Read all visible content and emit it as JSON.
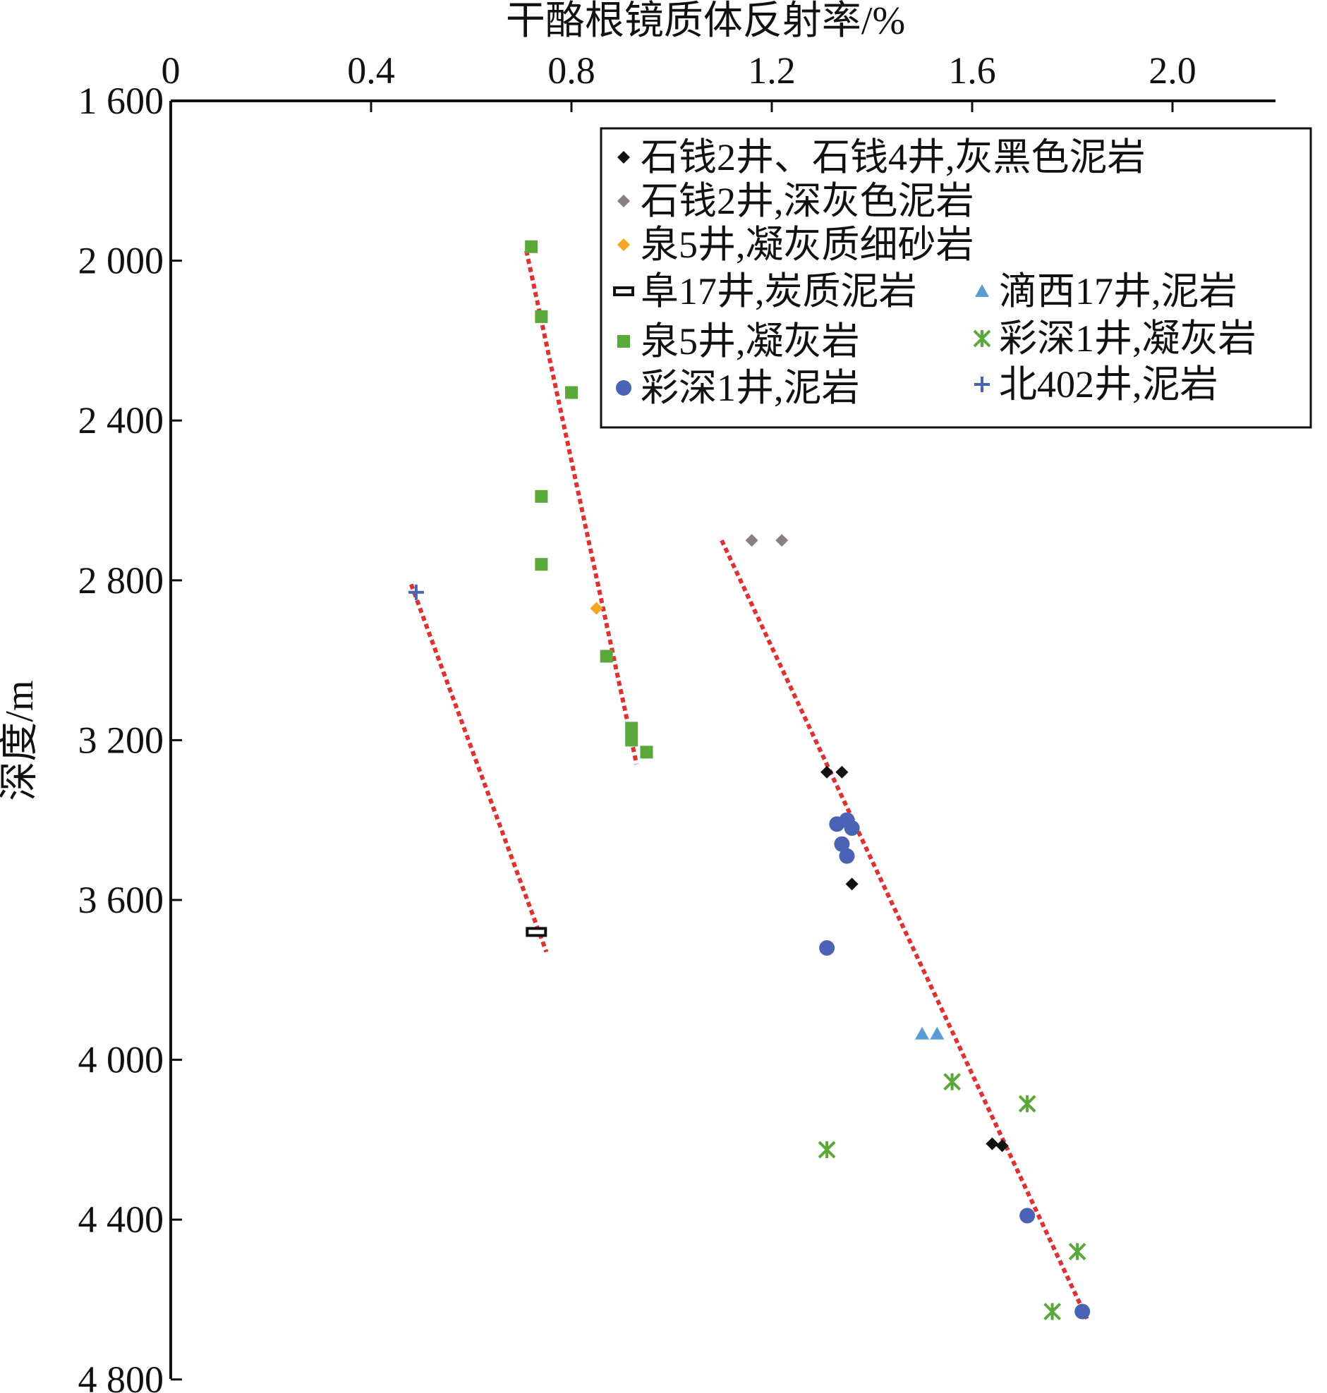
{
  "chart_data": {
    "type": "scatter",
    "title": "",
    "xlabel": "干酪根镜质体反射率/%",
    "ylabel": "深度/m",
    "x_axis_position": "top",
    "y_axis_inverted": true,
    "xlim": [
      0,
      2.2
    ],
    "ylim": [
      1600,
      4800
    ],
    "x_ticks": [
      0,
      0.4,
      0.8,
      1.2,
      1.6,
      2.0
    ],
    "x_tick_labels": [
      "0",
      "0.4",
      "0.8",
      "1.2",
      "1.6",
      "2.0"
    ],
    "y_ticks": [
      1600,
      2000,
      2400,
      2800,
      3200,
      3600,
      4000,
      4400,
      4800
    ],
    "y_tick_labels": [
      "1 600",
      "2 000",
      "2 400",
      "2 800",
      "3 200",
      "3 600",
      "4 000",
      "4 400",
      "4 800"
    ],
    "grid": false,
    "legend_position": "top-right",
    "series": [
      {
        "name": "石钱2井、石钱4井,灰黑色泥岩",
        "marker": "diamond",
        "color": "#111111",
        "points": [
          [
            1.31,
            3280
          ],
          [
            1.34,
            3280
          ],
          [
            1.36,
            3560
          ],
          [
            1.64,
            4210
          ],
          [
            1.66,
            4215
          ]
        ]
      },
      {
        "name": "石钱2井,深灰色泥岩",
        "marker": "diamond",
        "color": "#8a7f7f",
        "points": [
          [
            1.16,
            2700
          ],
          [
            1.22,
            2700
          ]
        ]
      },
      {
        "name": "泉5井,凝灰质细砂岩",
        "marker": "diamond",
        "color": "#f5a623",
        "points": [
          [
            0.85,
            2870
          ]
        ]
      },
      {
        "name": "阜17井,炭质泥岩",
        "marker": "bar",
        "color": "#111111",
        "points": [
          [
            0.73,
            3680
          ]
        ]
      },
      {
        "name": "泉5井,凝灰岩",
        "marker": "square",
        "color": "#5aa83a",
        "points": [
          [
            0.72,
            1965
          ],
          [
            0.74,
            2140
          ],
          [
            0.8,
            2330
          ],
          [
            0.74,
            2590
          ],
          [
            0.74,
            2760
          ],
          [
            0.87,
            2990
          ],
          [
            0.92,
            3170
          ],
          [
            0.92,
            3200
          ],
          [
            0.95,
            3230
          ]
        ]
      },
      {
        "name": "彩深1井,泥岩",
        "marker": "circle",
        "color": "#4a63b5",
        "points": [
          [
            1.33,
            3410
          ],
          [
            1.35,
            3400
          ],
          [
            1.36,
            3420
          ],
          [
            1.34,
            3460
          ],
          [
            1.35,
            3490
          ],
          [
            1.31,
            3720
          ],
          [
            1.71,
            4390
          ],
          [
            1.82,
            4630
          ]
        ]
      },
      {
        "name": "滴西17井,泥岩",
        "marker": "triangle",
        "color": "#5b9bd5",
        "points": [
          [
            1.5,
            3935
          ],
          [
            1.53,
            3935
          ]
        ]
      },
      {
        "name": "彩深1井,凝灰岩",
        "marker": "asterisk",
        "color": "#5aa83a",
        "points": [
          [
            1.31,
            4225
          ],
          [
            1.56,
            4055
          ],
          [
            1.71,
            4110
          ],
          [
            1.81,
            4480
          ],
          [
            1.76,
            4630
          ]
        ]
      },
      {
        "name": "北402井,泥岩",
        "marker": "plus",
        "color": "#4a63b5",
        "points": [
          [
            0.49,
            2830
          ]
        ]
      }
    ],
    "trend_lines": [
      {
        "color": "#e03030",
        "style": "dotted",
        "points": [
          [
            0.71,
            1975
          ],
          [
            0.93,
            3260
          ]
        ]
      },
      {
        "color": "#e03030",
        "style": "dotted",
        "points": [
          [
            0.48,
            2810
          ],
          [
            0.75,
            3730
          ]
        ]
      },
      {
        "color": "#e03030",
        "style": "dotted",
        "points": [
          [
            1.1,
            2700
          ],
          [
            1.83,
            4650
          ]
        ]
      }
    ]
  }
}
